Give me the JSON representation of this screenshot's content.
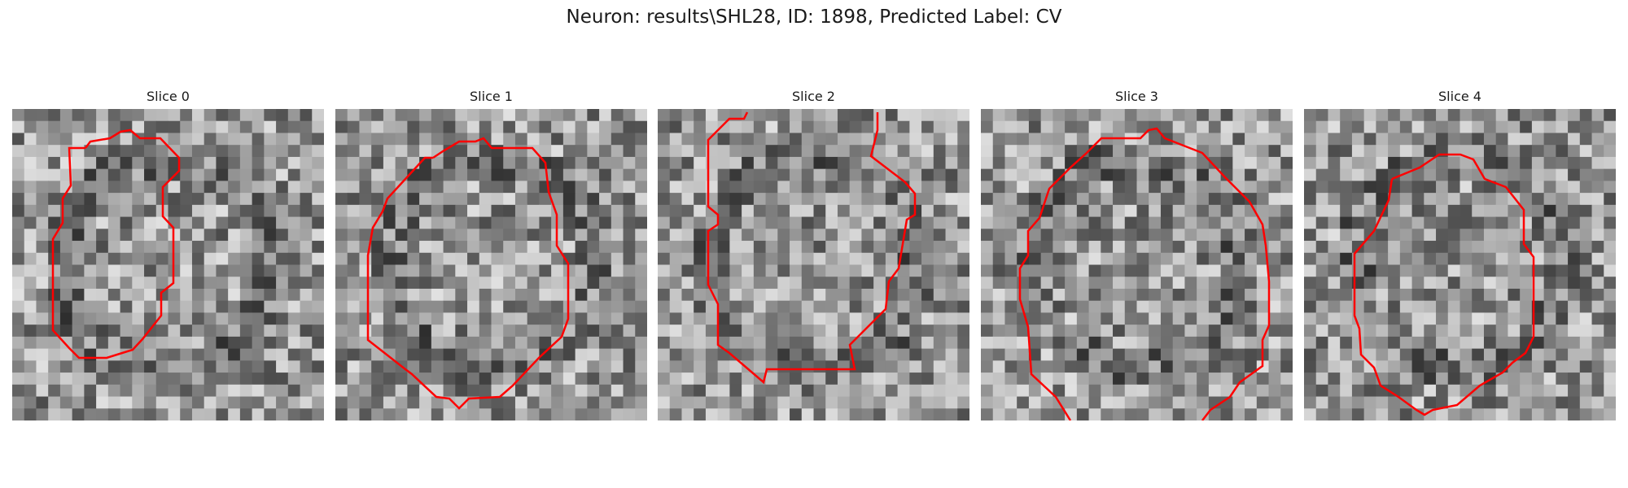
{
  "figure": {
    "title": "Neuron: results\\SHL28, ID: 1898, Predicted Label: CV"
  },
  "colors": {
    "contour": "#ff0000",
    "background": "#ffffff"
  },
  "slices": [
    {
      "label": "Slice 0"
    },
    {
      "label": "Slice 1"
    },
    {
      "label": "Slice 2"
    },
    {
      "label": "Slice 3"
    },
    {
      "label": "Slice 4"
    }
  ]
}
